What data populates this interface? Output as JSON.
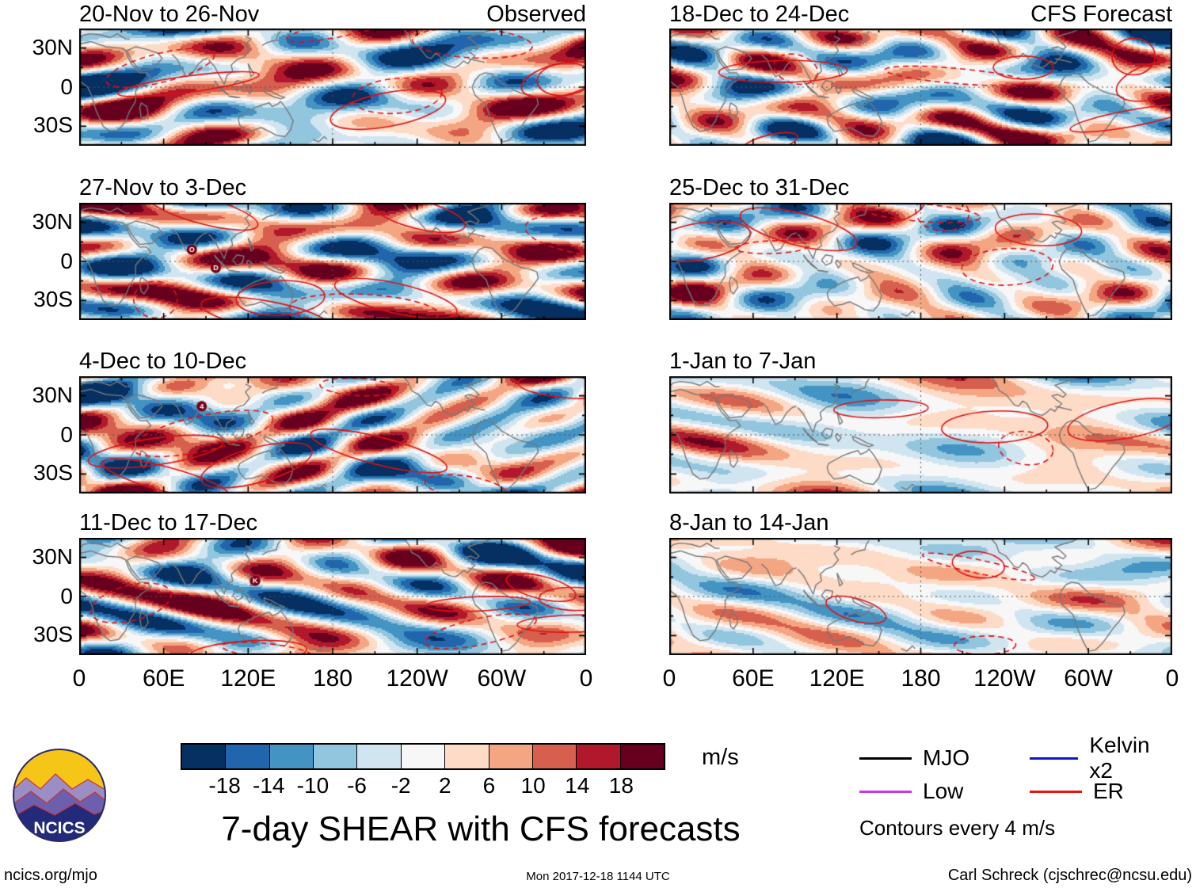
{
  "title": "7-day SHEAR with CFS forecasts",
  "labels": {
    "observed": "Observed",
    "forecast": "CFS Forecast"
  },
  "panels": [
    {
      "title": "20-Nov to 26-Nov",
      "group": "Observed",
      "storms": []
    },
    {
      "title": "27-Nov to 3-Dec",
      "group": "Observed",
      "storms": [
        {
          "label": "O",
          "lon": 80,
          "lat": 9
        },
        {
          "label": "D",
          "lon": 97,
          "lat": -5
        }
      ]
    },
    {
      "title": "4-Dec to 10-Dec",
      "group": "Observed",
      "storms": [
        {
          "label": "4",
          "lon": 87,
          "lat": 22
        }
      ]
    },
    {
      "title": "11-Dec to 17-Dec",
      "group": "Observed",
      "storms": [
        {
          "label": "K",
          "lon": 125,
          "lat": 12
        }
      ]
    },
    {
      "title": "18-Dec to 24-Dec",
      "group": "CFS Forecast",
      "storms": []
    },
    {
      "title": "25-Dec to 31-Dec",
      "group": "CFS Forecast",
      "storms": []
    },
    {
      "title": "1-Jan to 7-Jan",
      "group": "CFS Forecast",
      "storms": []
    },
    {
      "title": "8-Jan to 14-Jan",
      "group": "CFS Forecast",
      "storms": []
    }
  ],
  "axis": {
    "x_ticks": [
      "0",
      "60E",
      "120E",
      "180",
      "120W",
      "60W",
      "0"
    ],
    "y_ticks": [
      "30N",
      "0",
      "30S"
    ]
  },
  "colorbar": {
    "units": "m/s",
    "tick_labels": [
      "-18",
      "-14",
      "-10",
      "-6",
      "-2",
      "2",
      "6",
      "10",
      "14",
      "18"
    ],
    "levels": [
      -18,
      -14,
      -10,
      -6,
      -2,
      2,
      6,
      10,
      14,
      18
    ],
    "colors": [
      "#053061",
      "#2166ac",
      "#4393c3",
      "#92c5de",
      "#d1e5f0",
      "#f7f7f7",
      "#fddbc7",
      "#f4a582",
      "#d6604d",
      "#b2182b",
      "#67001f"
    ]
  },
  "legend": {
    "items": [
      {
        "label": "MJO",
        "color": "#000000"
      },
      {
        "label": "Kelvin x2",
        "color": "#1414cc"
      },
      {
        "label": "Low",
        "color": "#cc33ee"
      },
      {
        "label": "ER",
        "color": "#ee1111"
      }
    ],
    "note": "Contours every 4 m/s"
  },
  "logo": {
    "text": "NCICS"
  },
  "footer": {
    "left": "ncics.org/mjo",
    "center": "Mon 2017-12-18 1144 UTC",
    "right": "Carl Schreck (cjschrec@ncsu.edu)"
  },
  "chart_data": {
    "type": "heatmap",
    "title": "7-day SHEAR with CFS forecasts",
    "panels": [
      {
        "label": "20-Nov to 26-Nov",
        "group": "Observed"
      },
      {
        "label": "27-Nov to 3-Dec",
        "group": "Observed"
      },
      {
        "label": "4-Dec to 10-Dec",
        "group": "Observed"
      },
      {
        "label": "11-Dec to 17-Dec",
        "group": "Observed"
      },
      {
        "label": "18-Dec to 24-Dec",
        "group": "CFS Forecast"
      },
      {
        "label": "25-Dec to 31-Dec",
        "group": "CFS Forecast"
      },
      {
        "label": "1-Jan to 7-Jan",
        "group": "CFS Forecast"
      },
      {
        "label": "8-Jan to 14-Jan",
        "group": "CFS Forecast"
      }
    ],
    "x_axis": {
      "ticks": [
        "0",
        "60E",
        "120E",
        "180",
        "120W",
        "60W",
        "0"
      ],
      "range_deg": [
        0,
        360
      ]
    },
    "y_axis": {
      "ticks": [
        "30N",
        "0",
        "30S"
      ],
      "range_deg": [
        -45,
        45
      ]
    },
    "color_levels": [
      -18,
      -14,
      -10,
      -6,
      -2,
      2,
      6,
      10,
      14,
      18
    ],
    "units": "m/s",
    "contour_interval": "4 m/s",
    "overlay_waves": [
      "MJO",
      "Kelvin x2",
      "Low",
      "ER"
    ],
    "storm_markers": [
      {
        "panel": "27-Nov to 3-Dec",
        "label": "O"
      },
      {
        "panel": "27-Nov to 3-Dec",
        "label": "D"
      },
      {
        "panel": "4-Dec to 10-Dec",
        "label": "4"
      },
      {
        "panel": "11-Dec to 17-Dec",
        "label": "K"
      }
    ]
  }
}
